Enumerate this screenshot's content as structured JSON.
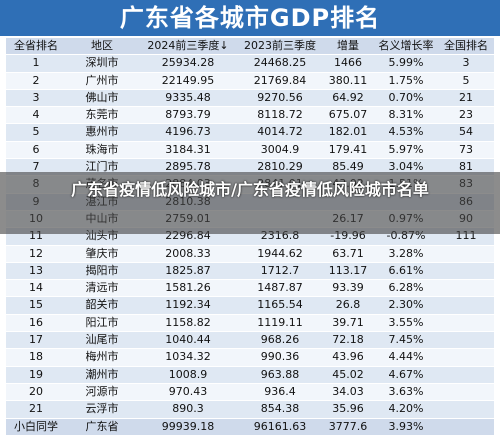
{
  "title": "广东省各城市GDP排名",
  "columns": [
    "全省排名",
    "地区",
    "2024前三季度↓",
    "2023前三季度",
    "增量",
    "名义增长率",
    "全国排名"
  ],
  "rows": [
    [
      "1",
      "深圳市",
      "25934.28",
      "24468.25",
      "1466",
      "5.99%",
      "3"
    ],
    [
      "2",
      "广州市",
      "22149.95",
      "21769.84",
      "380.11",
      "1.75%",
      "5"
    ],
    [
      "3",
      "佛山市",
      "9335.48",
      "9270.56",
      "64.92",
      "0.70%",
      "21"
    ],
    [
      "4",
      "东莞市",
      "8793.79",
      "8118.72",
      "675.07",
      "8.31%",
      "23"
    ],
    [
      "5",
      "惠州市",
      "4196.73",
      "4014.72",
      "182.01",
      "4.53%",
      "54"
    ],
    [
      "6",
      "珠海市",
      "3184.31",
      "3004.9",
      "179.41",
      "5.97%",
      "73"
    ],
    [
      "7",
      "江门市",
      "2895.78",
      "2810.29",
      "85.49",
      "3.04%",
      "81"
    ],
    [
      "8",
      "茂名市",
      "2884.03",
      "2841.01",
      "43.02",
      "1.51%",
      "83"
    ],
    [
      "9",
      "湛江市",
      "2810.38",
      "",
      "",
      "",
      "86"
    ],
    [
      "10",
      "中山市",
      "2759.01",
      "",
      "26.17",
      "0.97%",
      "90"
    ],
    [
      "11",
      "汕头市",
      "2296.84",
      "2316.8",
      "-19.96",
      "-0.87%",
      "111"
    ],
    [
      "12",
      "肇庆市",
      "2008.33",
      "1944.62",
      "63.71",
      "3.28%",
      ""
    ],
    [
      "13",
      "揭阳市",
      "1825.87",
      "1712.7",
      "113.17",
      "6.61%",
      ""
    ],
    [
      "14",
      "清远市",
      "1581.26",
      "1487.87",
      "93.39",
      "6.28%",
      ""
    ],
    [
      "15",
      "韶关市",
      "1192.34",
      "1165.54",
      "26.8",
      "2.30%",
      ""
    ],
    [
      "16",
      "阳江市",
      "1158.82",
      "1119.11",
      "39.71",
      "3.55%",
      ""
    ],
    [
      "17",
      "汕尾市",
      "1040.44",
      "968.26",
      "72.18",
      "7.45%",
      ""
    ],
    [
      "18",
      "梅州市",
      "1034.32",
      "990.36",
      "43.96",
      "4.44%",
      ""
    ],
    [
      "19",
      "潮州市",
      "1008.9",
      "963.88",
      "45.02",
      "4.67%",
      ""
    ],
    [
      "20",
      "河源市",
      "970.43",
      "936.4",
      "34.03",
      "3.63%",
      ""
    ],
    [
      "21",
      "云浮市",
      "890.3",
      "854.38",
      "35.96",
      "4.20%",
      ""
    ],
    [
      "小白同学",
      "广东省",
      "99939.18",
      "96161.63",
      "3777.6",
      "3.93%",
      ""
    ]
  ],
  "overlay_text": "广东省疫情低风险城市/广东省疫情低风险城市名单"
}
